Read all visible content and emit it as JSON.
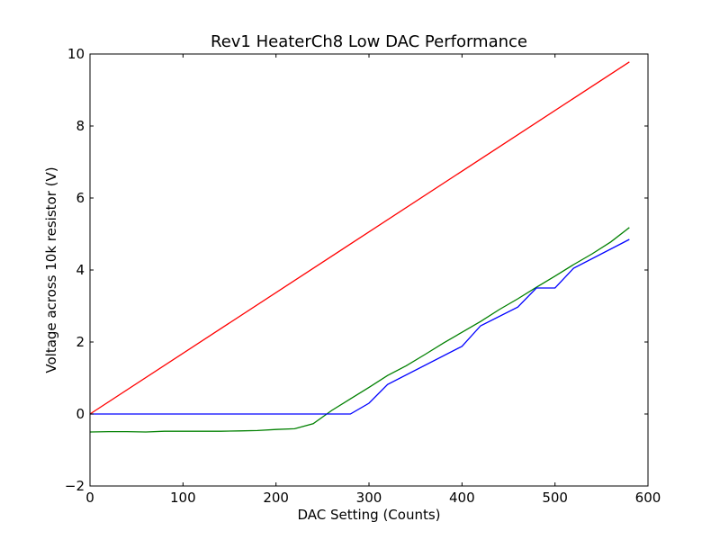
{
  "chart_data": {
    "type": "line",
    "title": "Rev1 HeaterCh8 Low DAC Performance",
    "xlabel": "DAC Setting (Counts)",
    "ylabel": "Voltage across 10k resistor (V)",
    "xlim": [
      0,
      600
    ],
    "ylim": [
      -2,
      10
    ],
    "x_ticks": [
      0,
      100,
      200,
      300,
      400,
      500,
      600
    ],
    "y_ticks": [
      -2,
      0,
      2,
      4,
      6,
      8,
      10
    ],
    "x_tick_labels": [
      "0",
      "100",
      "200",
      "300",
      "400",
      "500",
      "600"
    ],
    "y_tick_labels": [
      "−2",
      "0",
      "2",
      "4",
      "6",
      "8",
      "10"
    ],
    "grid": false,
    "series": [
      {
        "color": "#ff0000",
        "x": [
          0,
          580
        ],
        "y": [
          0,
          9.78
        ]
      },
      {
        "color": "#008000",
        "x": [
          0,
          20,
          40,
          60,
          80,
          100,
          120,
          140,
          160,
          180,
          200,
          220,
          240,
          260,
          280,
          300,
          320,
          340,
          360,
          380,
          400,
          420,
          440,
          460,
          480,
          500,
          520,
          540,
          560,
          580
        ],
        "y": [
          -0.5,
          -0.49,
          -0.49,
          -0.5,
          -0.48,
          -0.48,
          -0.48,
          -0.48,
          -0.47,
          -0.46,
          -0.43,
          -0.41,
          -0.27,
          0.1,
          0.42,
          0.74,
          1.07,
          1.34,
          1.65,
          1.97,
          2.27,
          2.57,
          2.9,
          3.2,
          3.52,
          3.83,
          4.15,
          4.45,
          4.78,
          5.18
        ]
      },
      {
        "color": "#0000ff",
        "x": [
          0,
          280,
          300,
          320,
          400,
          420,
          460,
          480,
          500,
          520,
          580
        ],
        "y": [
          0,
          0,
          0.3,
          0.82,
          1.88,
          2.45,
          2.97,
          3.5,
          3.5,
          4.05,
          4.85
        ]
      }
    ]
  }
}
